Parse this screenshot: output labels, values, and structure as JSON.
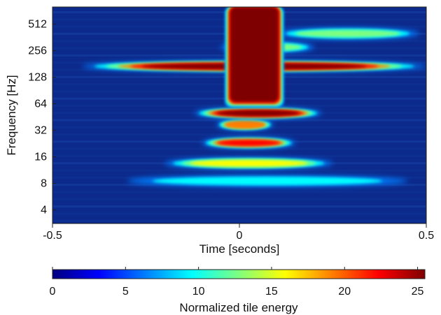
{
  "chart_data": [
    {
      "type": "heatmap",
      "title": "",
      "xlabel": "Time [seconds]",
      "ylabel": "Frequency [Hz]",
      "xlim": [
        -0.5,
        0.5
      ],
      "ylim": [
        2.8,
        800
      ],
      "yscale": "log2",
      "x_ticks": [
        -0.5,
        0,
        0.5
      ],
      "x_tick_labels": [
        "-0.5",
        "0",
        "0.5"
      ],
      "y_ticks": [
        4,
        8,
        16,
        32,
        64,
        128,
        256,
        512
      ],
      "y_tick_labels": [
        "4",
        "8",
        "16",
        "32",
        "64",
        "128",
        "256",
        "512"
      ],
      "grid": false,
      "background_color": "#0b2a8c",
      "features": [
        {
          "kind": "band",
          "freq": 8.5,
          "t_start": -0.3,
          "t_end": 0.45,
          "energy": 9
        },
        {
          "kind": "band",
          "freq": 13.5,
          "t_start": -0.2,
          "t_end": 0.25,
          "energy": 16
        },
        {
          "kind": "band",
          "freq": 23,
          "t_start": -0.1,
          "t_end": 0.15,
          "energy": 22
        },
        {
          "kind": "band",
          "freq": 37,
          "t_start": -0.06,
          "t_end": 0.09,
          "energy": 20
        },
        {
          "kind": "band",
          "freq": 50,
          "t_start": -0.12,
          "t_end": 0.22,
          "energy": 25
        },
        {
          "kind": "band",
          "freq": 170,
          "t_start": -0.42,
          "t_end": 0.5,
          "energy": 25
        },
        {
          "kind": "band",
          "freq": 280,
          "t_start": -0.05,
          "t_end": 0.2,
          "energy": 14
        },
        {
          "kind": "band",
          "freq": 400,
          "t_start": 0.1,
          "t_end": 0.48,
          "energy": 12
        },
        {
          "kind": "blob",
          "freq_low": 70,
          "freq_high": 800,
          "t_start": -0.02,
          "t_end": 0.1,
          "energy": 25
        }
      ],
      "colorbar": {
        "label": "Normalized tile energy",
        "range": [
          0,
          25.5
        ],
        "ticks": [
          0,
          5,
          10,
          15,
          20,
          25
        ],
        "tick_labels": [
          "0",
          "5",
          "10",
          "15",
          "20",
          "25"
        ],
        "colormap": [
          "#00007f",
          "#0000ff",
          "#007fff",
          "#00ffff",
          "#7fff7f",
          "#ffff00",
          "#ff7f00",
          "#ff0000",
          "#7f0000"
        ]
      }
    }
  ]
}
